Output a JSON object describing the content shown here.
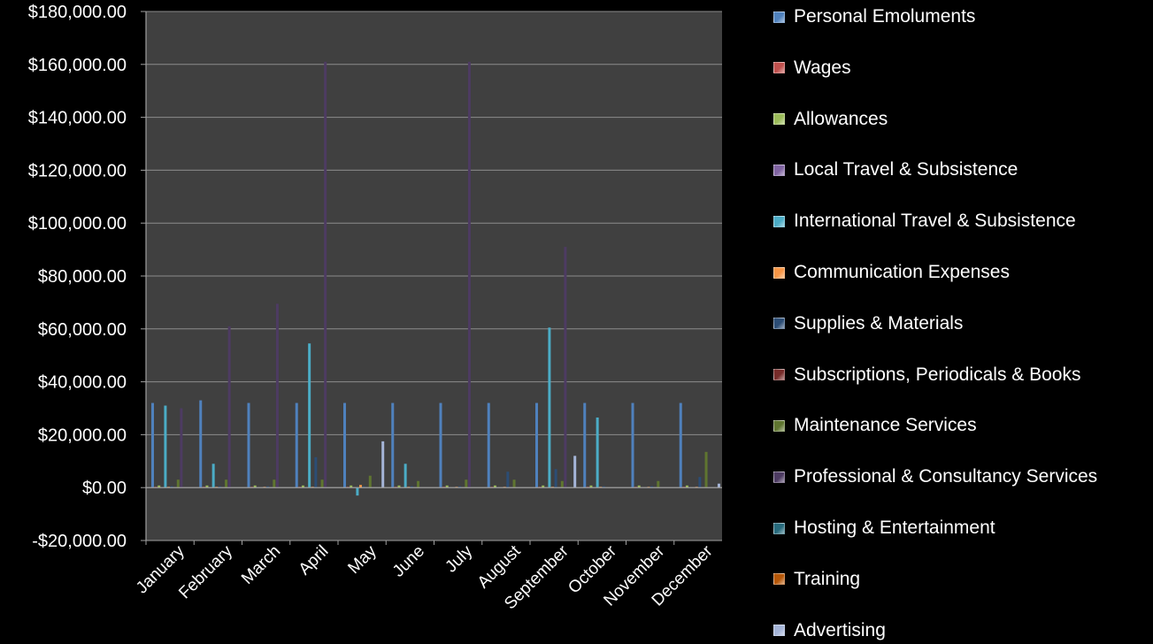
{
  "chart_data": {
    "type": "bar",
    "title": "",
    "xlabel": "",
    "ylabel": "",
    "ylim": [
      -20000,
      180000
    ],
    "yticks": [
      -20000,
      0,
      20000,
      40000,
      60000,
      80000,
      100000,
      120000,
      140000,
      160000,
      180000
    ],
    "ytick_labels": [
      "-$20,000.00",
      "$0.00",
      "$20,000.00",
      "$40,000.00",
      "$60,000.00",
      "$80,000.00",
      "$100,000.00",
      "$120,000.00",
      "$140,000.00",
      "$160,000.00",
      "$180,000.00"
    ],
    "grid": true,
    "legend_position": "right",
    "plot_background": "#404040",
    "categories": [
      "January",
      "February",
      "March",
      "April",
      "May",
      "June",
      "July",
      "August",
      "September",
      "October",
      "November",
      "December"
    ],
    "series": [
      {
        "name": "Personal Emoluments",
        "color": "#4F81BD",
        "values": [
          32000,
          33000,
          32000,
          32000,
          32000,
          32000,
          32000,
          32000,
          32000,
          32000,
          32000,
          32000
        ]
      },
      {
        "name": "Wages",
        "color": "#C0504D",
        "values": [
          300,
          300,
          300,
          300,
          300,
          300,
          300,
          300,
          300,
          300,
          300,
          300
        ]
      },
      {
        "name": "Allowances",
        "color": "#9BBB59",
        "values": [
          800,
          800,
          800,
          800,
          800,
          800,
          800,
          800,
          800,
          800,
          800,
          800
        ]
      },
      {
        "name": "Local Travel & Subsistence",
        "color": "#8064A2",
        "values": [
          0,
          0,
          0,
          0,
          0,
          0,
          0,
          0,
          0,
          0,
          0,
          0
        ]
      },
      {
        "name": "International Travel & Subsistence",
        "color": "#4BACC6",
        "values": [
          31000,
          9000,
          0,
          54500,
          -3000,
          9000,
          0,
          0,
          60500,
          26500,
          0,
          0
        ]
      },
      {
        "name": "Communication Expenses",
        "color": "#F79646",
        "values": [
          300,
          300,
          300,
          300,
          1000,
          300,
          300,
          300,
          300,
          300,
          300,
          300
        ]
      },
      {
        "name": "Supplies & Materials",
        "color": "#2C4D75",
        "values": [
          500,
          500,
          500,
          11500,
          500,
          500,
          500,
          6000,
          7000,
          500,
          500,
          4000
        ]
      },
      {
        "name": "Subscriptions, Periodicals & Books",
        "color": "#772C2A",
        "values": [
          0,
          0,
          0,
          0,
          0,
          0,
          0,
          0,
          0,
          0,
          0,
          0
        ]
      },
      {
        "name": "Maintenance Services",
        "color": "#5F7530",
        "values": [
          3000,
          3000,
          3000,
          3000,
          4500,
          2500,
          3000,
          3000,
          2500,
          0,
          2500,
          13500
        ]
      },
      {
        "name": "Professional & Consultancy Services",
        "color": "#4D3B62",
        "values": [
          30000,
          61000,
          69500,
          161000,
          0,
          0,
          161000,
          0,
          91000,
          0,
          0,
          0
        ]
      },
      {
        "name": "Hosting & Entertainment",
        "color": "#276A7C",
        "values": [
          0,
          0,
          0,
          0,
          0,
          0,
          0,
          0,
          0,
          0,
          0,
          0
        ]
      },
      {
        "name": "Training",
        "color": "#B65708",
        "values": [
          0,
          0,
          0,
          0,
          0,
          0,
          0,
          0,
          0,
          0,
          0,
          0
        ]
      },
      {
        "name": "Advertising",
        "color": "#A5B5D8",
        "values": [
          0,
          0,
          0,
          0,
          17500,
          0,
          0,
          0,
          12000,
          0,
          0,
          1500
        ]
      }
    ]
  }
}
